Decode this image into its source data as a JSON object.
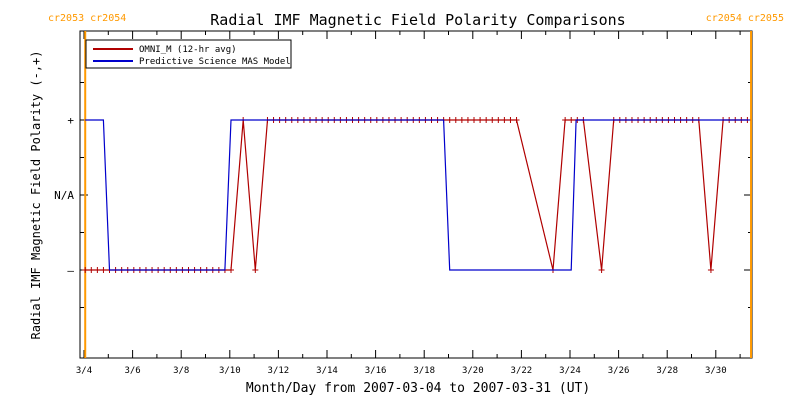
{
  "chart_data": {
    "type": "line",
    "title": "Radial IMF Magnetic Field Polarity Comparisons",
    "xlabel": "Month/Day from 2007-03-04 to 2007-03-31 (UT)",
    "ylabel": "Radial IMF Magnetic Field Polarity (-,+)",
    "x_unit": "days",
    "x_ticks": [
      {
        "x": 0,
        "label": "3/4"
      },
      {
        "x": 2,
        "label": "3/6"
      },
      {
        "x": 4,
        "label": "3/8"
      },
      {
        "x": 6,
        "label": "3/10"
      },
      {
        "x": 8,
        "label": "3/12"
      },
      {
        "x": 10,
        "label": "3/14"
      },
      {
        "x": 12,
        "label": "3/16"
      },
      {
        "x": 14,
        "label": "3/18"
      },
      {
        "x": 16,
        "label": "3/20"
      },
      {
        "x": 18,
        "label": "3/22"
      },
      {
        "x": 20,
        "label": "3/24"
      },
      {
        "x": 22,
        "label": "3/26"
      },
      {
        "x": 24,
        "label": "3/28"
      },
      {
        "x": 26,
        "label": "3/30"
      }
    ],
    "y_ticks": [
      {
        "y": 1,
        "label": "+"
      },
      {
        "y": 0,
        "label": "N/A"
      },
      {
        "y": -1,
        "label": "–"
      }
    ],
    "xlim": [
      0,
      27.5
    ],
    "ylim": [
      -2,
      2
    ],
    "legend_position": "top-left",
    "series": [
      {
        "name": "OMNI_M (12-hr avg)",
        "color": "#b00000",
        "marker": "+",
        "points": [
          [
            0.05,
            -1
          ],
          [
            0.3,
            -1
          ],
          [
            0.55,
            -1
          ],
          [
            0.8,
            -1
          ],
          [
            1.05,
            -1
          ],
          [
            1.3,
            -1
          ],
          [
            1.55,
            -1
          ],
          [
            1.8,
            -1
          ],
          [
            2.05,
            -1
          ],
          [
            2.3,
            -1
          ],
          [
            2.55,
            -1
          ],
          [
            2.8,
            -1
          ],
          [
            3.05,
            -1
          ],
          [
            3.3,
            -1
          ],
          [
            3.55,
            -1
          ],
          [
            3.8,
            -1
          ],
          [
            4.05,
            -1
          ],
          [
            4.3,
            -1
          ],
          [
            4.55,
            -1
          ],
          [
            4.8,
            -1
          ],
          [
            5.05,
            -1
          ],
          [
            5.3,
            -1
          ],
          [
            5.55,
            -1
          ],
          [
            5.8,
            -1
          ],
          [
            6.05,
            -1
          ],
          [
            6.55,
            1
          ],
          [
            7.05,
            -1
          ],
          [
            7.55,
            1
          ],
          [
            7.8,
            1
          ],
          [
            8.05,
            1
          ],
          [
            8.3,
            1
          ],
          [
            8.55,
            1
          ],
          [
            8.8,
            1
          ],
          [
            9.05,
            1
          ],
          [
            9.3,
            1
          ],
          [
            9.55,
            1
          ],
          [
            9.8,
            1
          ],
          [
            10.05,
            1
          ],
          [
            10.3,
            1
          ],
          [
            10.55,
            1
          ],
          [
            10.8,
            1
          ],
          [
            11.05,
            1
          ],
          [
            11.3,
            1
          ],
          [
            11.55,
            1
          ],
          [
            11.8,
            1
          ],
          [
            12.05,
            1
          ],
          [
            12.3,
            1
          ],
          [
            12.55,
            1
          ],
          [
            12.8,
            1
          ],
          [
            13.05,
            1
          ],
          [
            13.3,
            1
          ],
          [
            13.55,
            1
          ],
          [
            13.8,
            1
          ],
          [
            14.05,
            1
          ],
          [
            14.3,
            1
          ],
          [
            14.55,
            1
          ],
          [
            14.8,
            1
          ],
          [
            15.05,
            1
          ],
          [
            15.3,
            1
          ],
          [
            15.55,
            1
          ],
          [
            15.8,
            1
          ],
          [
            16.05,
            1
          ],
          [
            16.3,
            1
          ],
          [
            16.55,
            1
          ],
          [
            16.8,
            1
          ],
          [
            17.05,
            1
          ],
          [
            17.3,
            1
          ],
          [
            17.55,
            1
          ],
          [
            17.8,
            1
          ],
          [
            19.3,
            -1
          ],
          [
            19.8,
            1
          ],
          [
            20.05,
            1
          ],
          [
            20.3,
            1
          ],
          [
            20.55,
            1
          ],
          [
            21.3,
            -1
          ],
          [
            21.8,
            1
          ],
          [
            22.05,
            1
          ],
          [
            22.3,
            1
          ],
          [
            22.55,
            1
          ],
          [
            22.8,
            1
          ],
          [
            23.05,
            1
          ],
          [
            23.3,
            1
          ],
          [
            23.55,
            1
          ],
          [
            23.8,
            1
          ],
          [
            24.05,
            1
          ],
          [
            24.3,
            1
          ],
          [
            24.55,
            1
          ],
          [
            24.8,
            1
          ],
          [
            25.05,
            1
          ],
          [
            25.3,
            1
          ],
          [
            25.8,
            -1
          ],
          [
            26.3,
            1
          ],
          [
            26.55,
            1
          ],
          [
            26.8,
            1
          ],
          [
            27.05,
            1
          ],
          [
            27.3,
            1
          ]
        ]
      },
      {
        "name": "Predictive Science MAS Model",
        "color": "#0000cc",
        "marker": "",
        "points": [
          [
            0.05,
            1
          ],
          [
            0.8,
            1
          ],
          [
            1.05,
            -1
          ],
          [
            5.8,
            -1
          ],
          [
            6.05,
            1
          ],
          [
            14.8,
            1
          ],
          [
            15.05,
            -1
          ],
          [
            20.05,
            -1
          ],
          [
            20.25,
            1
          ],
          [
            27.4,
            1
          ]
        ]
      }
    ]
  },
  "carrington": {
    "left_label": "cr2053 cr2054",
    "mid_label": "cr2054 cr2055",
    "left_x": 0.05,
    "right_x": 27.45,
    "color": "#ff9900"
  }
}
